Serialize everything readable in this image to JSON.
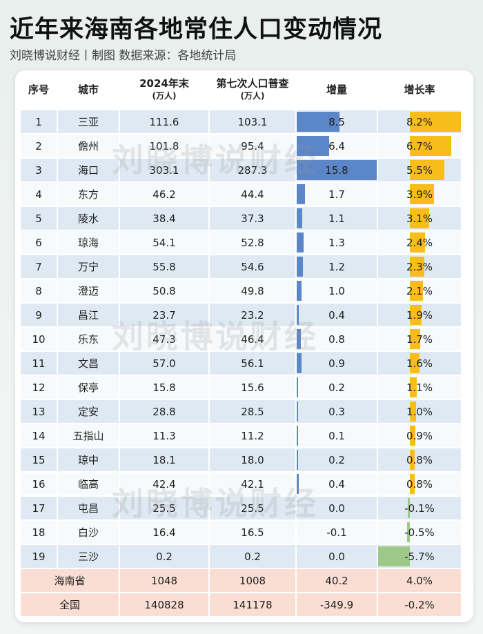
{
  "title": "近年来海南各地常住人口变动情况",
  "subtitle": "刘晓博说财经丨制图    数据来源：各地统计局",
  "watermark": "刘晓博说财经",
  "colors": {
    "inc_bar": "#5b86c8",
    "rate_pos": "#f9bd1b",
    "rate_neg": "#9cc98a",
    "total_bg": "#fbded3"
  },
  "headers": {
    "no": "序号",
    "city": "城市",
    "pop2024": "2024年末",
    "pop2024_unit": "(万人)",
    "census": "第七次人口普查",
    "census_unit": "(万人)",
    "increase": "增量",
    "rate": "增长率"
  },
  "rows": [
    {
      "no": "1",
      "city": "三亚",
      "pop2024": "111.6",
      "census": "103.1",
      "increase": "8.5",
      "rate": "8.2%"
    },
    {
      "no": "2",
      "city": "儋州",
      "pop2024": "101.8",
      "census": "95.4",
      "increase": "6.4",
      "rate": "6.7%"
    },
    {
      "no": "3",
      "city": "海口",
      "pop2024": "303.1",
      "census": "287.3",
      "increase": "15.8",
      "rate": "5.5%"
    },
    {
      "no": "4",
      "city": "东方",
      "pop2024": "46.2",
      "census": "44.4",
      "increase": "1.7",
      "rate": "3.9%"
    },
    {
      "no": "5",
      "city": "陵水",
      "pop2024": "38.4",
      "census": "37.3",
      "increase": "1.1",
      "rate": "3.1%"
    },
    {
      "no": "6",
      "city": "琼海",
      "pop2024": "54.1",
      "census": "52.8",
      "increase": "1.3",
      "rate": "2.4%"
    },
    {
      "no": "7",
      "city": "万宁",
      "pop2024": "55.8",
      "census": "54.6",
      "increase": "1.2",
      "rate": "2.3%"
    },
    {
      "no": "8",
      "city": "澄迈",
      "pop2024": "50.8",
      "census": "49.8",
      "increase": "1.0",
      "rate": "2.1%"
    },
    {
      "no": "9",
      "city": "昌江",
      "pop2024": "23.7",
      "census": "23.2",
      "increase": "0.4",
      "rate": "1.9%"
    },
    {
      "no": "10",
      "city": "乐东",
      "pop2024": "47.3",
      "census": "46.4",
      "increase": "0.8",
      "rate": "1.7%"
    },
    {
      "no": "11",
      "city": "文昌",
      "pop2024": "57.0",
      "census": "56.1",
      "increase": "0.9",
      "rate": "1.6%"
    },
    {
      "no": "12",
      "city": "保亭",
      "pop2024": "15.8",
      "census": "15.6",
      "increase": "0.2",
      "rate": "1.1%"
    },
    {
      "no": "13",
      "city": "定安",
      "pop2024": "28.8",
      "census": "28.5",
      "increase": "0.3",
      "rate": "1.0%"
    },
    {
      "no": "14",
      "city": "五指山",
      "pop2024": "11.3",
      "census": "11.2",
      "increase": "0.1",
      "rate": "0.9%"
    },
    {
      "no": "15",
      "city": "琼中",
      "pop2024": "18.1",
      "census": "18.0",
      "increase": "0.2",
      "rate": "0.8%"
    },
    {
      "no": "16",
      "city": "临高",
      "pop2024": "42.4",
      "census": "42.1",
      "increase": "0.4",
      "rate": "0.8%"
    },
    {
      "no": "17",
      "city": "屯昌",
      "pop2024": "25.5",
      "census": "25.5",
      "increase": "0.0",
      "rate": "-0.1%"
    },
    {
      "no": "18",
      "city": "白沙",
      "pop2024": "16.4",
      "census": "16.5",
      "increase": "-0.1",
      "rate": "-0.5%"
    },
    {
      "no": "19",
      "city": "三沙",
      "pop2024": "0.2",
      "census": "0.2",
      "increase": "0.0",
      "rate": "-5.7%"
    }
  ],
  "totals": [
    {
      "city": "海南省",
      "pop2024": "1048",
      "census": "1008",
      "increase": "40.2",
      "rate": "4.0%"
    },
    {
      "city": "全国",
      "pop2024": "140828",
      "census": "141178",
      "increase": "-349.9",
      "rate": "-0.2%"
    }
  ]
}
